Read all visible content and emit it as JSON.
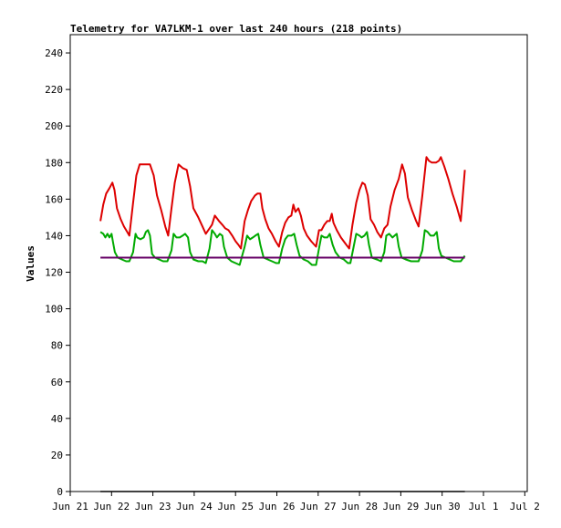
{
  "chart_data": {
    "type": "line",
    "title": "Telemetry for VA7LKM-1 over last 240 hours (218 points)",
    "ylabel": "Values",
    "xlabel": "",
    "ylim": [
      0,
      250
    ],
    "xlim": [
      21,
      31.25
    ],
    "yticks": [
      0,
      20,
      40,
      60,
      80,
      100,
      120,
      140,
      160,
      180,
      200,
      220,
      240
    ],
    "xticks": [
      {
        "x": 21,
        "label": "Jun 21"
      },
      {
        "x": 22,
        "label": "Jun 22"
      },
      {
        "x": 23,
        "label": "Jun 23"
      },
      {
        "x": 24,
        "label": "Jun 24"
      },
      {
        "x": 25,
        "label": "Jun 25"
      },
      {
        "x": 26,
        "label": "Jun 26"
      },
      {
        "x": 27,
        "label": "Jun 27"
      },
      {
        "x": 28,
        "label": "Jun 28"
      },
      {
        "x": 29,
        "label": "Jun 29"
      },
      {
        "x": 30,
        "label": "Jun 30"
      },
      {
        "x": 31,
        "label": "Jul 1"
      },
      {
        "x": 32,
        "label": "Jul 2"
      }
    ],
    "grid": false,
    "series": [
      {
        "color": "#dd0000",
        "points": [
          [
            21.73,
            148
          ],
          [
            21.8,
            157
          ],
          [
            21.87,
            163
          ],
          [
            21.95,
            166
          ],
          [
            22.02,
            169
          ],
          [
            22.07,
            165
          ],
          [
            22.13,
            155
          ],
          [
            22.22,
            149
          ],
          [
            22.3,
            145
          ],
          [
            22.38,
            142
          ],
          [
            22.43,
            140
          ],
          [
            22.52,
            158
          ],
          [
            22.6,
            173
          ],
          [
            22.68,
            179
          ],
          [
            22.8,
            179
          ],
          [
            22.93,
            179
          ],
          [
            23.02,
            173
          ],
          [
            23.1,
            162
          ],
          [
            23.2,
            154
          ],
          [
            23.3,
            145
          ],
          [
            23.37,
            140
          ],
          [
            23.45,
            155
          ],
          [
            23.53,
            169
          ],
          [
            23.62,
            179
          ],
          [
            23.72,
            177
          ],
          [
            23.82,
            176
          ],
          [
            23.9,
            167
          ],
          [
            23.98,
            155
          ],
          [
            24.1,
            150
          ],
          [
            24.2,
            145
          ],
          [
            24.28,
            141
          ],
          [
            24.37,
            144
          ],
          [
            24.43,
            146
          ],
          [
            24.5,
            151
          ],
          [
            24.6,
            148
          ],
          [
            24.68,
            146
          ],
          [
            24.75,
            144
          ],
          [
            24.83,
            143
          ],
          [
            24.92,
            140
          ],
          [
            25.0,
            137
          ],
          [
            25.07,
            135
          ],
          [
            25.13,
            133
          ],
          [
            25.22,
            148
          ],
          [
            25.3,
            154
          ],
          [
            25.38,
            159
          ],
          [
            25.47,
            162
          ],
          [
            25.53,
            163
          ],
          [
            25.6,
            163
          ],
          [
            25.65,
            155
          ],
          [
            25.72,
            149
          ],
          [
            25.8,
            144
          ],
          [
            25.88,
            141
          ],
          [
            25.97,
            137
          ],
          [
            26.05,
            134
          ],
          [
            26.13,
            142
          ],
          [
            26.2,
            147
          ],
          [
            26.28,
            150
          ],
          [
            26.35,
            151
          ],
          [
            26.4,
            157
          ],
          [
            26.45,
            153
          ],
          [
            26.52,
            155
          ],
          [
            26.58,
            151
          ],
          [
            26.65,
            144
          ],
          [
            26.73,
            140
          ],
          [
            26.83,
            137
          ],
          [
            26.95,
            134
          ],
          [
            27.02,
            143
          ],
          [
            27.08,
            143
          ],
          [
            27.15,
            146
          ],
          [
            27.22,
            148
          ],
          [
            27.28,
            148
          ],
          [
            27.33,
            152
          ],
          [
            27.37,
            147
          ],
          [
            27.45,
            143
          ],
          [
            27.55,
            139
          ],
          [
            27.65,
            136
          ],
          [
            27.75,
            133
          ],
          [
            27.83,
            146
          ],
          [
            27.92,
            158
          ],
          [
            28.0,
            165
          ],
          [
            28.07,
            169
          ],
          [
            28.13,
            168
          ],
          [
            28.2,
            162
          ],
          [
            28.27,
            149
          ],
          [
            28.35,
            146
          ],
          [
            28.43,
            142
          ],
          [
            28.52,
            139
          ],
          [
            28.6,
            144
          ],
          [
            28.68,
            146
          ],
          [
            28.75,
            156
          ],
          [
            28.85,
            165
          ],
          [
            28.95,
            171
          ],
          [
            29.03,
            179
          ],
          [
            29.1,
            174
          ],
          [
            29.17,
            161
          ],
          [
            29.27,
            154
          ],
          [
            29.37,
            148
          ],
          [
            29.43,
            145
          ],
          [
            29.52,
            162
          ],
          [
            29.62,
            183
          ],
          [
            29.68,
            181
          ],
          [
            29.75,
            180
          ],
          [
            29.85,
            180
          ],
          [
            29.92,
            181
          ],
          [
            29.97,
            183
          ],
          [
            30.05,
            178
          ],
          [
            30.15,
            171
          ],
          [
            30.25,
            163
          ],
          [
            30.35,
            156
          ],
          [
            30.45,
            148
          ],
          [
            30.55,
            176
          ]
        ]
      },
      {
        "color": "#00aa00",
        "points": [
          [
            21.73,
            142
          ],
          [
            21.8,
            141
          ],
          [
            21.85,
            139
          ],
          [
            21.9,
            141
          ],
          [
            21.95,
            139
          ],
          [
            22.0,
            141
          ],
          [
            22.03,
            137
          ],
          [
            22.08,
            131
          ],
          [
            22.15,
            128
          ],
          [
            22.25,
            127
          ],
          [
            22.35,
            126
          ],
          [
            22.43,
            126
          ],
          [
            22.52,
            131
          ],
          [
            22.58,
            141
          ],
          [
            22.62,
            139
          ],
          [
            22.7,
            138
          ],
          [
            22.78,
            139
          ],
          [
            22.83,
            142
          ],
          [
            22.88,
            143
          ],
          [
            22.93,
            140
          ],
          [
            22.98,
            130
          ],
          [
            23.05,
            128
          ],
          [
            23.15,
            127
          ],
          [
            23.25,
            126
          ],
          [
            23.35,
            126
          ],
          [
            23.45,
            132
          ],
          [
            23.5,
            141
          ],
          [
            23.57,
            139
          ],
          [
            23.65,
            139
          ],
          [
            23.72,
            140
          ],
          [
            23.78,
            141
          ],
          [
            23.85,
            139
          ],
          [
            23.9,
            131
          ],
          [
            23.98,
            127
          ],
          [
            24.1,
            126
          ],
          [
            24.2,
            126
          ],
          [
            24.28,
            125
          ],
          [
            24.37,
            133
          ],
          [
            24.43,
            143
          ],
          [
            24.5,
            141
          ],
          [
            24.55,
            139
          ],
          [
            24.62,
            141
          ],
          [
            24.68,
            140
          ],
          [
            24.72,
            134
          ],
          [
            24.8,
            128
          ],
          [
            24.9,
            126
          ],
          [
            25.0,
            125
          ],
          [
            25.1,
            124
          ],
          [
            25.22,
            134
          ],
          [
            25.28,
            140
          ],
          [
            25.35,
            138
          ],
          [
            25.42,
            139
          ],
          [
            25.48,
            140
          ],
          [
            25.55,
            141
          ],
          [
            25.6,
            135
          ],
          [
            25.68,
            128
          ],
          [
            25.78,
            127
          ],
          [
            25.88,
            126
          ],
          [
            25.98,
            125
          ],
          [
            26.05,
            125
          ],
          [
            26.13,
            133
          ],
          [
            26.2,
            138
          ],
          [
            26.27,
            140
          ],
          [
            26.35,
            140
          ],
          [
            26.42,
            141
          ],
          [
            26.48,
            135
          ],
          [
            26.55,
            129
          ],
          [
            26.65,
            127
          ],
          [
            26.75,
            126
          ],
          [
            26.85,
            124
          ],
          [
            26.95,
            124
          ],
          [
            27.02,
            133
          ],
          [
            27.08,
            140
          ],
          [
            27.15,
            139
          ],
          [
            27.22,
            139
          ],
          [
            27.28,
            141
          ],
          [
            27.35,
            135
          ],
          [
            27.42,
            131
          ],
          [
            27.52,
            128
          ],
          [
            27.62,
            127
          ],
          [
            27.72,
            125
          ],
          [
            27.78,
            125
          ],
          [
            27.85,
            133
          ],
          [
            27.92,
            141
          ],
          [
            28.0,
            140
          ],
          [
            28.05,
            139
          ],
          [
            28.12,
            140
          ],
          [
            28.18,
            142
          ],
          [
            28.23,
            135
          ],
          [
            28.3,
            128
          ],
          [
            28.42,
            127
          ],
          [
            28.52,
            126
          ],
          [
            28.6,
            131
          ],
          [
            28.65,
            140
          ],
          [
            28.72,
            141
          ],
          [
            28.8,
            139
          ],
          [
            28.85,
            140
          ],
          [
            28.9,
            141
          ],
          [
            28.95,
            134
          ],
          [
            29.02,
            128
          ],
          [
            29.12,
            127
          ],
          [
            29.25,
            126
          ],
          [
            29.35,
            126
          ],
          [
            29.43,
            126
          ],
          [
            29.52,
            132
          ],
          [
            29.58,
            143
          ],
          [
            29.65,
            142
          ],
          [
            29.72,
            140
          ],
          [
            29.8,
            140
          ],
          [
            29.87,
            142
          ],
          [
            29.92,
            133
          ],
          [
            29.98,
            129
          ],
          [
            30.08,
            128
          ],
          [
            30.18,
            127
          ],
          [
            30.28,
            126
          ],
          [
            30.38,
            126
          ],
          [
            30.45,
            126
          ],
          [
            30.55,
            129
          ]
        ]
      },
      {
        "color": "#660066",
        "points": [
          [
            21.73,
            128
          ],
          [
            22.5,
            128
          ],
          [
            23.5,
            128
          ],
          [
            24.5,
            128
          ],
          [
            25.5,
            128
          ],
          [
            26.5,
            128
          ],
          [
            27.5,
            128
          ],
          [
            28.5,
            128
          ],
          [
            29.5,
            128
          ],
          [
            30.55,
            128
          ]
        ]
      },
      {
        "color": "#000000",
        "points": [
          [
            21.73,
            0
          ],
          [
            30.55,
            0
          ]
        ]
      }
    ]
  }
}
